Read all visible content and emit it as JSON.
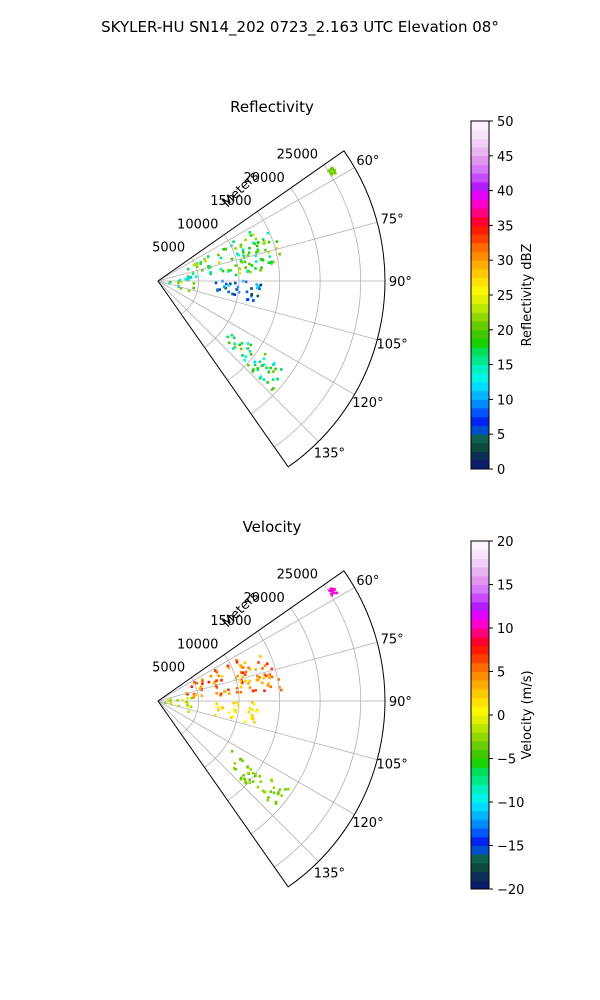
{
  "suptitle": "SKYLER-HU  SN14_202  0723_2.163 UTC Elevation 08°",
  "chart_data": [
    {
      "type": "ppi-sector",
      "title": "Reflectivity",
      "radial_label": "Meters",
      "range_ticks": [
        5000,
        10000,
        15000,
        20000,
        25000
      ],
      "range_tick_labels": [
        "5000",
        "10000",
        "15000",
        "20000",
        "25000"
      ],
      "rmax": 28000,
      "theta_range": [
        55,
        145
      ],
      "theta_ticks": [
        60,
        75,
        90,
        105,
        120,
        135
      ],
      "theta_tick_labels": [
        "60°",
        "75°",
        "90°",
        "105°",
        "120°",
        "135°"
      ],
      "grid": true,
      "colorbar": {
        "label": "Reflectivity dBZ",
        "min": 0,
        "max": 50,
        "ticks": [
          0,
          5,
          10,
          15,
          20,
          25,
          30,
          35,
          40,
          45,
          50
        ],
        "tick_labels": [
          "0",
          "5",
          "10",
          "15",
          "20",
          "25",
          "30",
          "35",
          "40",
          "45",
          "50"
        ],
        "colors": [
          "#0b1c6b",
          "#0c2d54",
          "#0d4a3a",
          "#0e6150",
          "#004fd1",
          "#0023f0",
          "#0057ff",
          "#008cff",
          "#00b6ff",
          "#00dcff",
          "#00f5e6",
          "#00f0c0",
          "#00e88c",
          "#00de5a",
          "#19d200",
          "#40c800",
          "#68cc00",
          "#90d800",
          "#b8e600",
          "#e0f000",
          "#fff700",
          "#ffe000",
          "#ffc800",
          "#ffac00",
          "#ff8c00",
          "#ff6a00",
          "#ff4000",
          "#ff1a00",
          "#ff0030",
          "#ff0080",
          "#ff00cc",
          "#e200ff",
          "#b41eff",
          "#c84cff",
          "#d878ff",
          "#e196ee",
          "#eab4f4",
          "#f2cff8",
          "#f7e4fb",
          "#fbf2fd"
        ]
      },
      "regions": [
        {
          "feature": "near-range echo",
          "r": [
            300,
            4500
          ],
          "theta": [
            78,
            112
          ],
          "value": [
            8,
            24
          ]
        },
        {
          "feature": "main echo band",
          "r": [
            3500,
            15500
          ],
          "theta": [
            62,
            86
          ],
          "value": [
            14,
            24
          ]
        },
        {
          "feature": "weak echo patch",
          "r": [
            6500,
            13000
          ],
          "theta": [
            90,
            104
          ],
          "value": [
            2,
            12
          ]
        },
        {
          "feature": "southeast echo",
          "r": [
            11000,
            19500
          ],
          "theta": [
            124,
            134
          ],
          "value": [
            12,
            21
          ]
        },
        {
          "feature": "distant echo",
          "r": [
            25000,
            25800
          ],
          "theta": [
            57,
            59
          ],
          "value": [
            20,
            22
          ]
        }
      ]
    },
    {
      "type": "ppi-sector",
      "title": "Velocity",
      "radial_label": "Meters",
      "range_ticks": [
        5000,
        10000,
        15000,
        20000,
        25000
      ],
      "range_tick_labels": [
        "5000",
        "10000",
        "15000",
        "20000",
        "25000"
      ],
      "rmax": 28000,
      "theta_range": [
        55,
        145
      ],
      "theta_ticks": [
        60,
        75,
        90,
        105,
        120,
        135
      ],
      "theta_tick_labels": [
        "60°",
        "75°",
        "90°",
        "105°",
        "120°",
        "135°"
      ],
      "grid": true,
      "colorbar": {
        "label": "Velocity (m/s)",
        "min": -20,
        "max": 20,
        "ticks": [
          -20,
          -15,
          -10,
          -5,
          0,
          5,
          10,
          15,
          20
        ],
        "tick_labels": [
          "−20",
          "−15",
          "−10",
          "−5",
          "0",
          "5",
          "10",
          "15",
          "20"
        ],
        "colors": [
          "#0b1c6b",
          "#0c2d54",
          "#0d4a3a",
          "#0e6150",
          "#004fd1",
          "#0023f0",
          "#0057ff",
          "#008cff",
          "#00b6ff",
          "#00dcff",
          "#00f5e6",
          "#00f0c0",
          "#00e88c",
          "#00de5a",
          "#19d200",
          "#40c800",
          "#68cc00",
          "#90d800",
          "#b8e600",
          "#e0f000",
          "#fff700",
          "#ffe000",
          "#ffc800",
          "#ffac00",
          "#ff8c00",
          "#ff6a00",
          "#ff4000",
          "#ff1a00",
          "#ff0030",
          "#ff0080",
          "#ff00cc",
          "#e200ff",
          "#b41eff",
          "#c84cff",
          "#d878ff",
          "#e196ee",
          "#eab4f4",
          "#f2cff8",
          "#f7e4fb",
          "#fbf2fd"
        ]
      },
      "regions": [
        {
          "feature": "near-range echo",
          "r": [
            300,
            4500
          ],
          "theta": [
            78,
            112
          ],
          "value": [
            -3,
            1
          ]
        },
        {
          "feature": "main echo band",
          "r": [
            3500,
            15500
          ],
          "theta": [
            62,
            86
          ],
          "value": [
            2,
            8
          ]
        },
        {
          "feature": "weak echo patch",
          "r": [
            6500,
            13000
          ],
          "theta": [
            90,
            104
          ],
          "value": [
            0,
            3
          ]
        },
        {
          "feature": "southeast echo",
          "r": [
            11000,
            19500
          ],
          "theta": [
            124,
            134
          ],
          "value": [
            -4,
            -2
          ]
        },
        {
          "feature": "distant echo",
          "r": [
            25000,
            25800
          ],
          "theta": [
            57,
            59
          ],
          "value": [
            10,
            12
          ]
        }
      ]
    }
  ]
}
